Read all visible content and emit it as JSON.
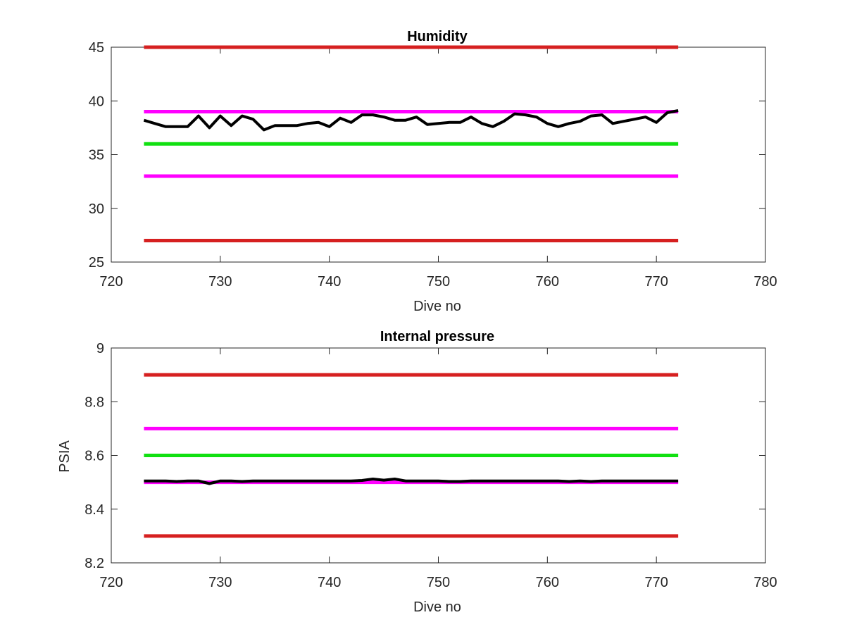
{
  "chart_data": [
    {
      "type": "line",
      "title": "Humidity",
      "xlabel": "Dive no",
      "ylabel": "",
      "xlim": [
        720,
        780
      ],
      "ylim": [
        25,
        45
      ],
      "xticks": [
        720,
        730,
        740,
        750,
        760,
        770,
        780
      ],
      "yticks": [
        25,
        30,
        35,
        40,
        45
      ],
      "grid": false,
      "reference_lines": [
        {
          "y": 45,
          "x": [
            723,
            772
          ],
          "color": "#d62020"
        },
        {
          "y": 39,
          "x": [
            723,
            772
          ],
          "color": "#ff00ff"
        },
        {
          "y": 36,
          "x": [
            723,
            772
          ],
          "color": "#11e011"
        },
        {
          "y": 33,
          "x": [
            723,
            772
          ],
          "color": "#ff00ff"
        },
        {
          "y": 27,
          "x": [
            723,
            772
          ],
          "color": "#d62020"
        }
      ],
      "series": [
        {
          "color": "#000000",
          "x": [
            723,
            724,
            725,
            726,
            727,
            728,
            729,
            730,
            731,
            732,
            733,
            734,
            735,
            736,
            737,
            738,
            739,
            740,
            741,
            742,
            743,
            744,
            745,
            746,
            747,
            748,
            749,
            750,
            751,
            752,
            753,
            754,
            755,
            756,
            757,
            758,
            759,
            760,
            761,
            762,
            763,
            764,
            765,
            766,
            767,
            768,
            769,
            770,
            771,
            772
          ],
          "values": [
            38.2,
            37.9,
            37.6,
            37.6,
            37.6,
            38.6,
            37.5,
            38.6,
            37.7,
            38.6,
            38.3,
            37.3,
            37.7,
            37.7,
            37.7,
            37.9,
            38.0,
            37.6,
            38.4,
            38.0,
            38.7,
            38.7,
            38.5,
            38.2,
            38.2,
            38.5,
            37.8,
            37.9,
            38.0,
            38.0,
            38.5,
            37.9,
            37.6,
            38.1,
            38.8,
            38.7,
            38.5,
            37.9,
            37.6,
            37.9,
            38.1,
            38.6,
            38.7,
            37.9,
            38.1,
            38.3,
            38.5,
            38.0,
            38.9,
            39.1
          ]
        }
      ]
    },
    {
      "type": "line",
      "title": "Internal pressure",
      "xlabel": "Dive no",
      "ylabel": "PSIA",
      "xlim": [
        720,
        780
      ],
      "ylim": [
        8.2,
        9
      ],
      "xticks": [
        720,
        730,
        740,
        750,
        760,
        770,
        780
      ],
      "yticks": [
        8.2,
        8.4,
        8.6,
        8.8,
        9
      ],
      "grid": false,
      "reference_lines": [
        {
          "y": 8.9,
          "x": [
            723,
            772
          ],
          "color": "#d62020"
        },
        {
          "y": 8.7,
          "x": [
            723,
            772
          ],
          "color": "#ff00ff"
        },
        {
          "y": 8.6,
          "x": [
            723,
            772
          ],
          "color": "#11e011"
        },
        {
          "y": 8.5,
          "x": [
            723,
            772
          ],
          "color": "#ff00ff"
        },
        {
          "y": 8.3,
          "x": [
            723,
            772
          ],
          "color": "#d62020"
        }
      ],
      "series": [
        {
          "color": "#000000",
          "x": [
            723,
            724,
            725,
            726,
            727,
            728,
            729,
            730,
            731,
            732,
            733,
            734,
            735,
            736,
            737,
            738,
            739,
            740,
            741,
            742,
            743,
            744,
            745,
            746,
            747,
            748,
            749,
            750,
            751,
            752,
            753,
            754,
            755,
            756,
            757,
            758,
            759,
            760,
            761,
            762,
            763,
            764,
            765,
            766,
            767,
            768,
            769,
            770,
            771,
            772
          ],
          "values": [
            8.505,
            8.505,
            8.505,
            8.503,
            8.505,
            8.505,
            8.495,
            8.505,
            8.505,
            8.503,
            8.505,
            8.505,
            8.505,
            8.505,
            8.505,
            8.505,
            8.505,
            8.505,
            8.505,
            8.505,
            8.507,
            8.512,
            8.508,
            8.512,
            8.505,
            8.505,
            8.505,
            8.505,
            8.503,
            8.503,
            8.505,
            8.505,
            8.505,
            8.505,
            8.505,
            8.505,
            8.505,
            8.505,
            8.505,
            8.503,
            8.505,
            8.503,
            8.505,
            8.505,
            8.505,
            8.505,
            8.505,
            8.505,
            8.505,
            8.505
          ]
        }
      ]
    }
  ]
}
